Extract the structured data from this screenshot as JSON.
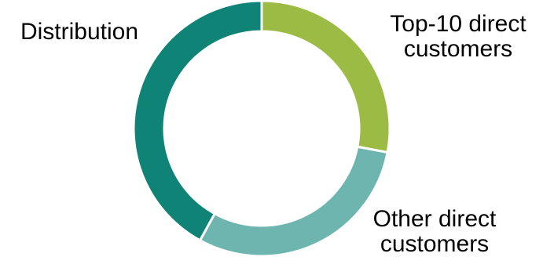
{
  "chart_data": {
    "type": "pie",
    "variant": "donut",
    "title": "",
    "legend": "none",
    "slices": [
      {
        "label": [
          "Top-10 direct",
          "customers"
        ],
        "value": 28,
        "color": "#9cbb44"
      },
      {
        "label": [
          "Other direct",
          "customers"
        ],
        "value": 30,
        "color": "#6db5ae"
      },
      {
        "label": [
          "Distribution"
        ],
        "value": 42,
        "color": "#0f8376"
      }
    ]
  }
}
